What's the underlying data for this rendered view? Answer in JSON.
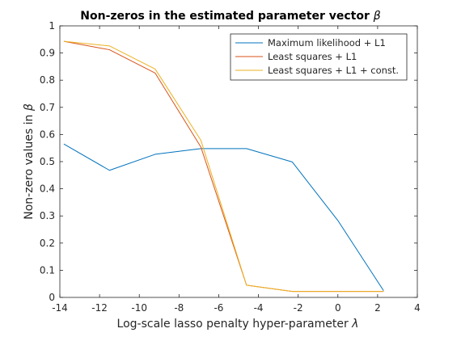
{
  "chart_data": {
    "type": "line",
    "title": "Non-zeros in the estimated parameter vector",
    "title_symbol": "β",
    "xlabel": "Log-scale lasso penalty hyper-parameter",
    "xlabel_symbol": "λ",
    "ylabel": "Non-zero values in",
    "ylabel_symbol": "β",
    "xlim": [
      -14,
      4
    ],
    "ylim": [
      0,
      1
    ],
    "xticks": [
      -14,
      -12,
      -10,
      -8,
      -6,
      -4,
      -2,
      0,
      2,
      4
    ],
    "yticks": [
      0,
      0.1,
      0.2,
      0.3,
      0.4,
      0.5,
      0.6,
      0.7,
      0.8,
      0.9,
      1
    ],
    "grid": false,
    "legend_position": "top-right",
    "x": [
      -13.8,
      -11.5,
      -9.2,
      -6.9,
      -4.6,
      -2.3,
      0,
      2.3
    ],
    "series": [
      {
        "name": "Maximum likelihood + L1",
        "color": "#0072BD",
        "values": [
          0.565,
          0.468,
          0.527,
          0.548,
          0.548,
          0.499,
          0.283,
          0.025
        ]
      },
      {
        "name": "Least squares + L1",
        "color": "#D95319",
        "values": [
          0.943,
          0.912,
          0.826,
          0.554,
          0.045,
          0.022,
          0.022,
          0.022
        ]
      },
      {
        "name": "Least squares + L1 + const.",
        "color": "#EDB120",
        "values": [
          0.943,
          0.926,
          0.841,
          0.579,
          0.045,
          0.022,
          0.022,
          0.022
        ]
      }
    ]
  }
}
